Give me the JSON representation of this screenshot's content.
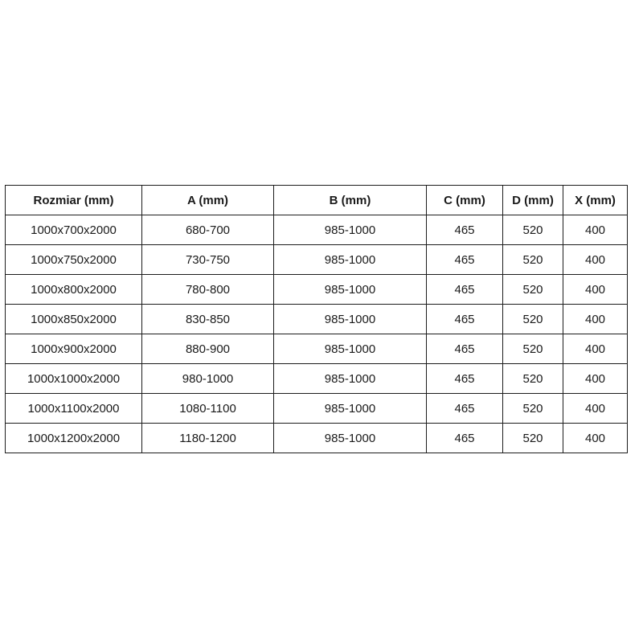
{
  "table": {
    "headers": [
      "Rozmiar (mm)",
      "A (mm)",
      "B (mm)",
      "C (mm)",
      "D (mm)",
      "X (mm)"
    ],
    "rows": [
      [
        "1000x700x2000",
        "680-700",
        "985-1000",
        "465",
        "520",
        "400"
      ],
      [
        "1000x750x2000",
        "730-750",
        "985-1000",
        "465",
        "520",
        "400"
      ],
      [
        "1000x800x2000",
        "780-800",
        "985-1000",
        "465",
        "520",
        "400"
      ],
      [
        "1000x850x2000",
        "830-850",
        "985-1000",
        "465",
        "520",
        "400"
      ],
      [
        "1000x900x2000",
        "880-900",
        "985-1000",
        "465",
        "520",
        "400"
      ],
      [
        "1000x1000x2000",
        "980-1000",
        "985-1000",
        "465",
        "520",
        "400"
      ],
      [
        "1000x1100x2000",
        "1080-1100",
        "985-1000",
        "465",
        "520",
        "400"
      ],
      [
        "1000x1200x2000",
        "1180-1200",
        "985-1000",
        "465",
        "520",
        "400"
      ]
    ],
    "colors": {
      "border": "#1c1c1c",
      "text": "#1a1a1a",
      "background": "#ffffff"
    }
  }
}
